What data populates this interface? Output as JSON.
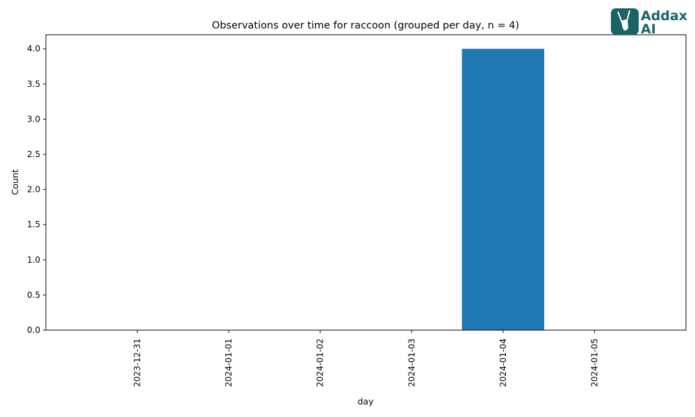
{
  "logo": {
    "line1": "Addax",
    "line2": "AI",
    "color": "#1a6466",
    "icon": "addax-antelope-icon"
  },
  "chart_data": {
    "type": "bar",
    "title": "Observations over time for raccoon (grouped per day, n = 4)",
    "xlabel": "day",
    "ylabel": "Count",
    "categories": [
      "2023-12-31",
      "2024-01-01",
      "2024-01-02",
      "2024-01-03",
      "2024-01-04",
      "2024-01-05"
    ],
    "values": [
      0,
      0,
      0,
      0,
      4,
      0
    ],
    "ylim": [
      0,
      4.2
    ],
    "yticks": [
      "0.0",
      "0.5",
      "1.0",
      "1.5",
      "2.0",
      "2.5",
      "3.0",
      "3.5",
      "4.0"
    ],
    "bar_color": "#1f77b4",
    "grid": false,
    "legend": "none"
  }
}
